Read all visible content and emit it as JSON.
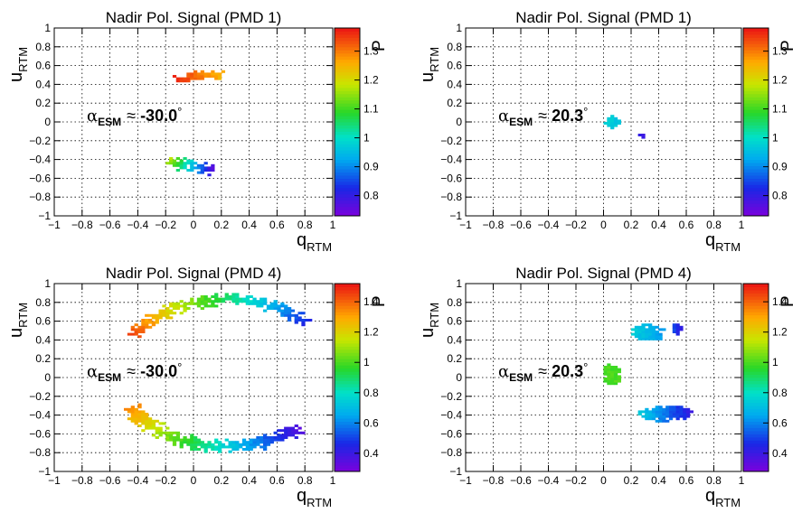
{
  "chart_data": [
    {
      "type": "heatmap",
      "title": "Nadir Pol. Signal (PMD 1)",
      "xlabel": "q",
      "xlabel_sub": "RTM",
      "ylabel": "u",
      "ylabel_sub": "RTM",
      "zlabel": "P",
      "xlim": [
        -1,
        1
      ],
      "ylim": [
        -1,
        1
      ],
      "xticks": [
        "−1",
        "−0.8",
        "−0.6",
        "−0.4",
        "−0.2",
        "0",
        "0.2",
        "0.4",
        "0.6",
        "0.8",
        "1"
      ],
      "yticks": [
        "−1",
        "−0.8",
        "−0.6",
        "−0.4",
        "−0.2",
        "0",
        "0.2",
        "0.4",
        "0.6",
        "0.8",
        "1"
      ],
      "zlim": [
        0.73,
        1.38
      ],
      "zticks": [
        {
          "v": 0.8,
          "label": "0.8"
        },
        {
          "v": 0.9,
          "label": "0.9"
        },
        {
          "v": 1.0,
          "label": "1"
        },
        {
          "v": 1.1,
          "label": "1.1"
        },
        {
          "v": 1.2,
          "label": "1.2"
        },
        {
          "v": 1.3,
          "label": "1.3"
        }
      ],
      "grid": true,
      "annotation": {
        "alpha": "α",
        "sub": "ESM",
        "approx": "≈",
        "value": "-30.0",
        "deg": "°"
      },
      "blobs": [
        {
          "shape": "arc",
          "cx": 0.12,
          "cy": 0.0,
          "r": 0.5,
          "a1": 80,
          "a2": 118,
          "w": 0.11,
          "z1": 1.25,
          "z2": 1.36
        },
        {
          "shape": "arc",
          "cx": 0.12,
          "cy": 0.0,
          "r": 0.5,
          "a1": 233,
          "a2": 273,
          "w": 0.15,
          "z1": 1.18,
          "z2": 0.76
        }
      ]
    },
    {
      "type": "heatmap",
      "title": "Nadir Pol. Signal (PMD 1)",
      "xlabel": "q",
      "xlabel_sub": "RTM",
      "ylabel": "u",
      "ylabel_sub": "RTM",
      "zlabel": "P",
      "xlim": [
        -1,
        1
      ],
      "ylim": [
        -1,
        1
      ],
      "xticks": [
        "−1",
        "−0.8",
        "−0.6",
        "−0.4",
        "−0.2",
        "0",
        "0.2",
        "0.4",
        "0.6",
        "0.8",
        "1"
      ],
      "yticks": [
        "−1",
        "−0.8",
        "−0.6",
        "−0.4",
        "−0.2",
        "0",
        "0.2",
        "0.4",
        "0.6",
        "0.8",
        "1"
      ],
      "zlim": [
        0.73,
        1.38
      ],
      "zticks": [
        {
          "v": 0.8,
          "label": "0.8"
        },
        {
          "v": 0.9,
          "label": "0.9"
        },
        {
          "v": 1.0,
          "label": "1"
        },
        {
          "v": 1.1,
          "label": "1.1"
        },
        {
          "v": 1.2,
          "label": "1.2"
        },
        {
          "v": 1.3,
          "label": "1.3"
        }
      ],
      "grid": true,
      "annotation": {
        "alpha": "α",
        "sub": "ESM",
        "approx": "≈",
        "value": "20.3",
        "deg": "°"
      },
      "blobs": [
        {
          "shape": "ellipse",
          "cx": 0.06,
          "cy": 0.0,
          "rx": 0.055,
          "ry": 0.07,
          "z1": 0.98,
          "z2": 0.96
        },
        {
          "shape": "ellipse",
          "cx": 0.16,
          "cy": 0.25,
          "rx": 0.02,
          "ry": 0.012,
          "z1": 0.98,
          "z2": 0.98
        },
        {
          "shape": "ellipse",
          "cx": 0.275,
          "cy": -0.14,
          "rx": 0.03,
          "ry": 0.03,
          "z1": 0.8,
          "z2": 0.78
        }
      ]
    },
    {
      "type": "heatmap",
      "title": "Nadir Pol. Signal (PMD 4)",
      "xlabel": "q",
      "xlabel_sub": "RTM",
      "ylabel": "u",
      "ylabel_sub": "RTM",
      "zlabel": "P",
      "xlim": [
        -1,
        1
      ],
      "ylim": [
        -1,
        1
      ],
      "xticks": [
        "−1",
        "−0.8",
        "−0.6",
        "−0.4",
        "−0.2",
        "0",
        "0.2",
        "0.4",
        "0.6",
        "0.8",
        "1"
      ],
      "yticks": [
        "−1",
        "−0.8",
        "−0.6",
        "−0.4",
        "−0.2",
        "0",
        "0.2",
        "0.4",
        "0.6",
        "0.8",
        "1"
      ],
      "zlim": [
        0.28,
        1.52
      ],
      "zticks": [
        {
          "v": 0.4,
          "label": "0.4"
        },
        {
          "v": 0.6,
          "label": "0.6"
        },
        {
          "v": 0.8,
          "label": "0.8"
        },
        {
          "v": 1.0,
          "label": "1"
        },
        {
          "v": 1.2,
          "label": "1.2"
        },
        {
          "v": 1.4,
          "label": "1.4"
        }
      ],
      "grid": true,
      "annotation": {
        "alpha": "α",
        "sub": "ESM",
        "approx": "≈",
        "value": "-30.0",
        "deg": "°"
      },
      "blobs": [
        {
          "shape": "arc",
          "cx": 0.24,
          "cy": 0.05,
          "r": 0.78,
          "a1": 42,
          "a2": 150,
          "w": 0.14,
          "z1": 0.45,
          "z2": 1.45
        },
        {
          "shape": "arc",
          "cx": 0.24,
          "cy": 0.05,
          "r": 0.78,
          "a1": 208,
          "a2": 312,
          "w": 0.16,
          "z1": 1.35,
          "z2": 0.35
        }
      ]
    },
    {
      "type": "heatmap",
      "title": "Nadir Pol. Signal (PMD 4)",
      "xlabel": "q",
      "xlabel_sub": "RTM",
      "ylabel": "u",
      "ylabel_sub": "RTM",
      "zlabel": "P",
      "xlim": [
        -1,
        1
      ],
      "ylim": [
        -1,
        1
      ],
      "xticks": [
        "−1",
        "−0.8",
        "−0.6",
        "−0.4",
        "−0.2",
        "0",
        "0.2",
        "0.4",
        "0.6",
        "0.8",
        "1"
      ],
      "yticks": [
        "−1",
        "−0.8",
        "−0.6",
        "−0.4",
        "−0.2",
        "0",
        "0.2",
        "0.4",
        "0.6",
        "0.8",
        "1"
      ],
      "zlim": [
        0.28,
        1.52
      ],
      "zticks": [
        {
          "v": 0.4,
          "label": "0.4"
        },
        {
          "v": 0.6,
          "label": "0.6"
        },
        {
          "v": 0.8,
          "label": "0.8"
        },
        {
          "v": 1.0,
          "label": "1"
        },
        {
          "v": 1.2,
          "label": "1.2"
        },
        {
          "v": 1.4,
          "label": "1.4"
        }
      ],
      "grid": true,
      "annotation": {
        "alpha": "α",
        "sub": "ESM",
        "approx": "≈",
        "value": "20.3",
        "deg": "°"
      },
      "blobs": [
        {
          "shape": "ellipse",
          "cx": 0.06,
          "cy": 0.03,
          "rx": 0.07,
          "ry": 0.12,
          "z1": 1.0,
          "z2": 1.0
        },
        {
          "shape": "ellipse",
          "cx": 0.33,
          "cy": 0.48,
          "rx": 0.13,
          "ry": 0.09,
          "z1": 0.75,
          "z2": 0.62
        },
        {
          "shape": "ellipse",
          "cx": 0.53,
          "cy": 0.52,
          "rx": 0.04,
          "ry": 0.06,
          "z1": 0.55,
          "z2": 0.4
        },
        {
          "shape": "ellipse",
          "cx": 0.45,
          "cy": -0.38,
          "rx": 0.2,
          "ry": 0.09,
          "z1": 0.75,
          "z2": 0.4
        }
      ]
    }
  ]
}
